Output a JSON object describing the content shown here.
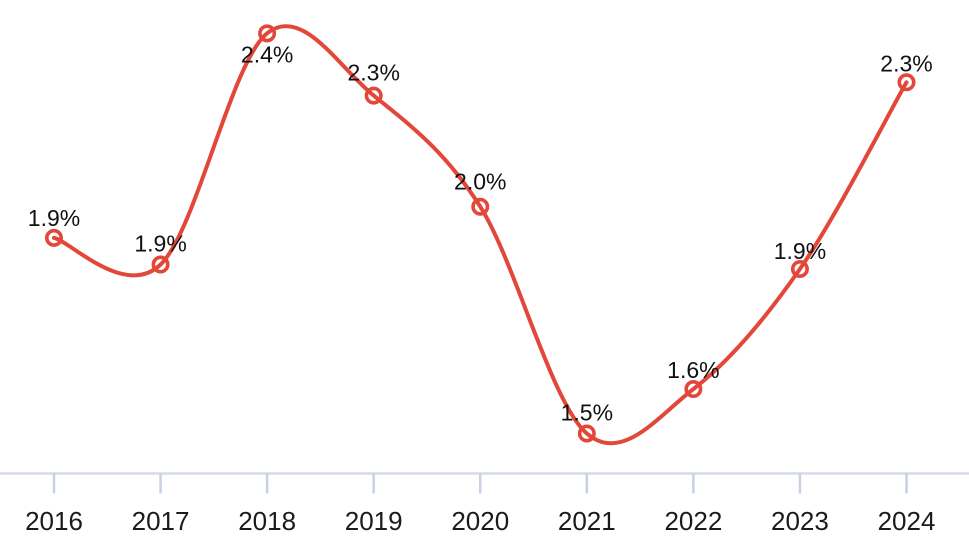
{
  "chart_data": {
    "type": "line",
    "categories": [
      "2016",
      "2017",
      "2018",
      "2019",
      "2020",
      "2021",
      "2022",
      "2023",
      "2024"
    ],
    "series": [
      {
        "point_labels": [
          "1.9%",
          "1.9%",
          "2.4%",
          "2.3%",
          "2.0%",
          "1.5%",
          "1.6%",
          "1.9%",
          "2.3%"
        ],
        "values": [
          1.9,
          1.9,
          2.4,
          2.3,
          2.0,
          1.5,
          1.6,
          1.9,
          2.3
        ],
        "values_precise_est": [
          1.94,
          1.88,
          2.4,
          2.26,
          2.01,
          1.5,
          1.6,
          1.87,
          2.29
        ],
        "color": "#e2473a",
        "marker": "open-circle",
        "smooth": true
      }
    ],
    "ylim": [
      1.41,
      2.475
    ],
    "grid": false,
    "legend": "none",
    "y_axis_visible": false,
    "x_axis": {
      "line_color": "#d6dcea",
      "tick_color": "#c7d1e5",
      "label_color": "#1b1b1b"
    },
    "data_label_color": "#111111",
    "background": "#ffffff"
  }
}
